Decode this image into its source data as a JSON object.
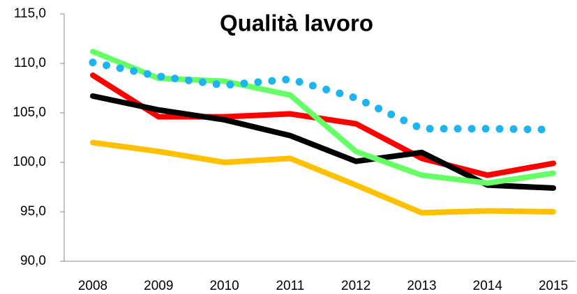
{
  "chart_data": {
    "type": "line",
    "title": "Qualità lavoro",
    "categories": [
      "2008",
      "2009",
      "2010",
      "2011",
      "2012",
      "2013",
      "2014",
      "2015"
    ],
    "series": [
      {
        "color": "#ffc000",
        "values": [
          102.0,
          101.1,
          100.0,
          100.4,
          97.7,
          94.9,
          95.1,
          95.0
        ]
      },
      {
        "color": "#ff0000",
        "values": [
          108.8,
          104.6,
          104.6,
          104.9,
          103.9,
          100.4,
          98.7,
          99.9
        ]
      },
      {
        "color": "#000000",
        "values": [
          106.7,
          105.3,
          104.3,
          102.7,
          100.1,
          101.0,
          97.7,
          97.4
        ]
      },
      {
        "color": "#66ff66",
        "values": [
          111.2,
          108.5,
          108.2,
          106.8,
          101.1,
          98.7,
          97.9,
          98.9
        ]
      },
      {
        "color": "#1eb4f0",
        "style": "dotted",
        "values": [
          110.1,
          108.7,
          107.8,
          108.4,
          106.5,
          103.4,
          103.4,
          103.3
        ]
      }
    ],
    "ylim": [
      90,
      115
    ],
    "yticks": [
      {
        "value": 90,
        "label": "90,0"
      },
      {
        "value": 95,
        "label": "95,0"
      },
      {
        "value": 100,
        "label": "100,0"
      },
      {
        "value": 105,
        "label": "105,0"
      },
      {
        "value": 110,
        "label": "110,0"
      },
      {
        "value": 115,
        "label": "115,0"
      }
    ],
    "grid": false
  }
}
